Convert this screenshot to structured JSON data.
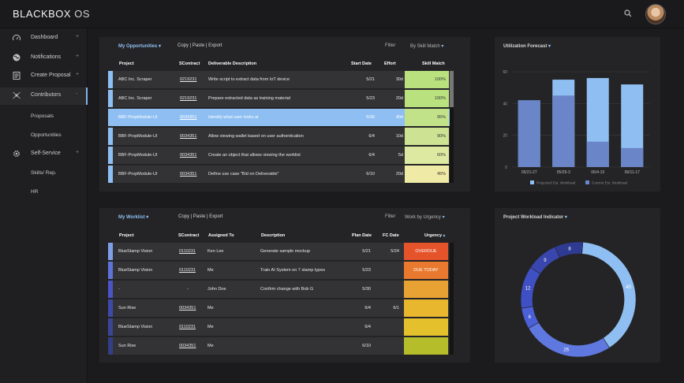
{
  "app": {
    "brand": "BLACKBOX",
    "brand_suffix": "OS"
  },
  "sidebar": {
    "items": [
      {
        "label": "Dashboard",
        "icon": "gauge-icon",
        "expander": "+"
      },
      {
        "label": "Notifications",
        "icon": "globe-icon",
        "expander": "+"
      },
      {
        "label": "Create Proposal",
        "icon": "document-icon",
        "expander": "+"
      },
      {
        "label": "Contributors",
        "icon": "network-icon",
        "expander": "-"
      }
    ],
    "contributors_sub": [
      "Proposals",
      "Opportunities"
    ],
    "self_service": {
      "label": "Self-Service",
      "icon": "gear-icon",
      "expander": "+"
    },
    "self_service_sub": [
      "Skills/ Rep.",
      "HR"
    ]
  },
  "opportunities": {
    "title": "My Opportunities",
    "actions": "Copy | Paste | Export",
    "filter_label": "Filter",
    "filter_value": "By Skill Match",
    "columns": [
      "Project",
      "SContract",
      "Deliverable Description",
      "Start Date",
      "Effort",
      "Skill Match"
    ],
    "rows": [
      {
        "project": "ABC Inc. Scraper",
        "contract": "0219231",
        "description": "Write script to extract data from IoT device",
        "start": "5/21",
        "effort": "30d",
        "match": "100%",
        "color": "#b9e27f",
        "stripe": "#8fbff2"
      },
      {
        "project": "ABC Inc. Scraper",
        "contract": "0219231",
        "description": "Prepare extracted data as training material",
        "start": "5/23",
        "effort": "20d",
        "match": "100%",
        "color": "#b9e27f",
        "stripe": "#8fbff2"
      },
      {
        "project": "BBF-PropModule-UI",
        "contract": "0034351",
        "description": "Identify what user looks at",
        "start": "5/30",
        "effort": "40d",
        "match": "95%",
        "color": "#c2e28a",
        "stripe": "#8fbff2"
      },
      {
        "project": "BBF-PropModule-UI",
        "contract": "0034351",
        "description": "Allow viewing wallet based on user authentication",
        "start": "6/4",
        "effort": "10d",
        "match": "90%",
        "color": "#cde393",
        "stripe": "#8fbff2"
      },
      {
        "project": "BBF-PropModule-UI",
        "contract": "0034351",
        "description": "Create an object that allows viewing the worklist",
        "start": "6/4",
        "effort": "5d",
        "match": "60%",
        "color": "#dde9a0",
        "stripe": "#8fbff2"
      },
      {
        "project": "BBF-PropModule-UI",
        "contract": "0034351",
        "description": "Define use case \"Bid on Deliverable\"",
        "start": "6/10",
        "effort": "20d",
        "match": "45%",
        "color": "#efeaa5",
        "stripe": "#8fbff2"
      }
    ]
  },
  "worklist": {
    "title": "My Worklist",
    "actions": "Copy | Paste | Export",
    "filter_label": "Filter",
    "filter_value": "Work by Urgency",
    "columns": [
      "Project",
      "SContract",
      "Assigned To",
      "Description",
      "Plan Date",
      "FC Date",
      "Urgency"
    ],
    "rows": [
      {
        "project": "BlueStamp Vision",
        "contract": "0110231",
        "assigned": "Ken Lee",
        "description": "Generate sample mockup",
        "plan": "5/21",
        "fc": "5/24",
        "urgency": "OVERDUE",
        "color": "#e5532b",
        "stripe": "#7f9ee8"
      },
      {
        "project": "BlueStamp Vision",
        "contract": "0110231",
        "assigned": "Me",
        "description": "Train AI System on 7 stamp types",
        "plan": "5/23",
        "fc": "",
        "urgency": "DUE TODAY",
        "color": "#e9792e",
        "stripe": "#5e73d8"
      },
      {
        "project": "-",
        "contract": "-",
        "assigned": "John Doe",
        "description": "Confirm change with  Bob G",
        "plan": "5/30",
        "fc": "",
        "urgency": "",
        "color": "#e8a233",
        "stripe": "#4b54c4"
      },
      {
        "project": "Sun Rise",
        "contract": "0034351",
        "assigned": "Me",
        "description": "",
        "plan": "6/4",
        "fc": "6/1",
        "urgency": "",
        "color": "#e8b72e",
        "stripe": "#3f4aa8"
      },
      {
        "project": "BlueStamp Vision",
        "contract": "0110231",
        "assigned": "Me",
        "description": "",
        "plan": "6/4",
        "fc": "",
        "urgency": "",
        "color": "#e4c12c",
        "stripe": "#3a4595"
      },
      {
        "project": "Sun Rise",
        "contract": "0034351",
        "assigned": "Me",
        "description": "",
        "plan": "6/10",
        "fc": "",
        "urgency": "",
        "color": "#b5bd2a",
        "stripe": "#333e85"
      }
    ]
  },
  "utilization": {
    "title": "Utilization Forecast",
    "chart_data": {
      "type": "bar",
      "categories": [
        "05/21-27",
        "05/29-3",
        "06/4-10",
        "06/11-17"
      ],
      "series": [
        {
          "name": "Projected Est. Workload",
          "values": [
            42,
            55,
            56,
            52
          ],
          "color": "#8fbff2"
        },
        {
          "name": "Current Est. Workload",
          "values": [
            42,
            45,
            16,
            12
          ],
          "color": "#6a85c8"
        }
      ],
      "ylim": [
        0,
        60
      ],
      "yticks": [
        0,
        20,
        40,
        60
      ],
      "grid": true,
      "legend": "bottom"
    }
  },
  "workload": {
    "title": "Project Workload Indicator",
    "chart_data": {
      "type": "pie",
      "values": [
        40,
        26,
        6,
        12,
        9,
        8
      ],
      "labels": [
        "40",
        "26",
        "6",
        "12",
        "9",
        "8"
      ],
      "colors": [
        "#8fbff2",
        "#5f78e0",
        "#4b5fd6",
        "#3f50c4",
        "#3846ae",
        "#2f3b92"
      ]
    }
  }
}
